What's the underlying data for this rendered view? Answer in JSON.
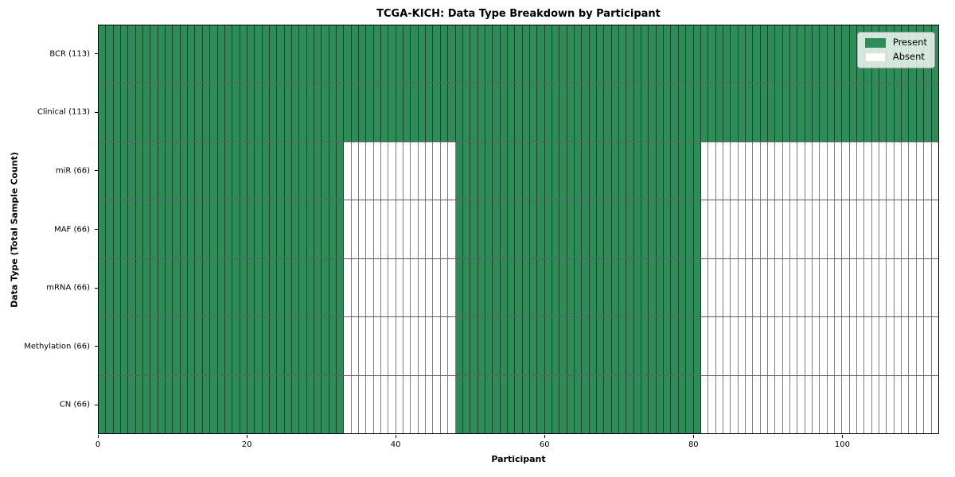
{
  "chart_data": {
    "type": "heatmap",
    "title": "TCGA-KICH: Data Type Breakdown by Participant",
    "xlabel": "Participant",
    "ylabel": "Data Type (Total Sample Count)",
    "n_participants": 113,
    "x_ticks": [
      0,
      20,
      40,
      60,
      80,
      100
    ],
    "xlim": [
      0,
      113
    ],
    "grid": "cell-borders",
    "legend_position": "upper-right",
    "legend": [
      {
        "label": "Present",
        "color": "#2f8b57"
      },
      {
        "label": "Absent",
        "color": "#ffffff"
      }
    ],
    "colors": {
      "present": "#2f8b57",
      "absent": "#ffffff",
      "cell_border": "rgba(0,0,0,0.5)",
      "row_border": "rgba(0,0,0,0.62)",
      "spine": "#000000"
    },
    "rows": [
      {
        "label": "BCR (113)",
        "data_type": "BCR",
        "total_samples": 113,
        "present_ranges": [
          [
            0,
            113
          ]
        ]
      },
      {
        "label": "Clinical (113)",
        "data_type": "Clinical",
        "total_samples": 113,
        "present_ranges": [
          [
            0,
            113
          ]
        ]
      },
      {
        "label": "miR (66)",
        "data_type": "miR",
        "total_samples": 66,
        "present_ranges": [
          [
            0,
            33
          ],
          [
            48,
            81
          ]
        ]
      },
      {
        "label": "MAF (66)",
        "data_type": "MAF",
        "total_samples": 66,
        "present_ranges": [
          [
            0,
            33
          ],
          [
            48,
            81
          ]
        ]
      },
      {
        "label": "mRNA (66)",
        "data_type": "mRNA",
        "total_samples": 66,
        "present_ranges": [
          [
            0,
            33
          ],
          [
            48,
            81
          ]
        ]
      },
      {
        "label": "Methylation (66)",
        "data_type": "Methylation",
        "total_samples": 66,
        "present_ranges": [
          [
            0,
            33
          ],
          [
            48,
            81
          ]
        ]
      },
      {
        "label": "CN (66)",
        "data_type": "CN",
        "total_samples": 66,
        "present_ranges": [
          [
            0,
            33
          ],
          [
            48,
            81
          ]
        ]
      }
    ]
  }
}
